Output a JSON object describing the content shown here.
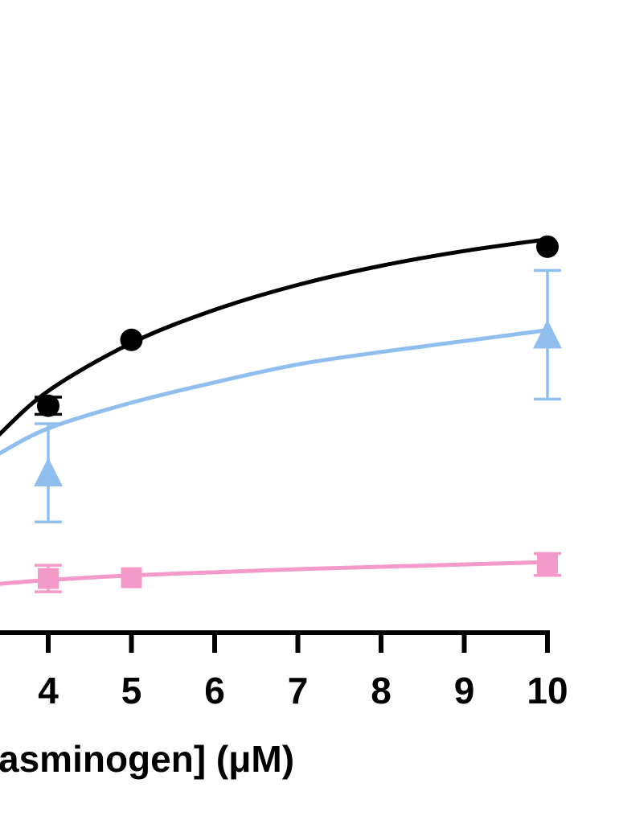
{
  "chart_data": {
    "type": "scatter",
    "xlabel": "asminogen] (μM)",
    "xlim": [
      0.5,
      10.2
    ],
    "ylim": [
      0,
      100
    ],
    "x_ticks": [
      4,
      5,
      6,
      7,
      8,
      9,
      10
    ],
    "x_tick_labels": [
      "4",
      "5",
      "6",
      "7",
      "8",
      "9",
      "10"
    ],
    "series": [
      {
        "marker": "circle",
        "color": "#000000",
        "points": [
          {
            "x": 4,
            "y": 58.2,
            "err": 2.2
          },
          {
            "x": 5,
            "y": 75.1,
            "err": 0
          },
          {
            "x": 10,
            "y": 99.0,
            "err": 0
          }
        ],
        "fit": [
          {
            "x": 3.4,
            "y": 50.6
          },
          {
            "x": 4,
            "y": 62.0
          },
          {
            "x": 5,
            "y": 74.3
          },
          {
            "x": 6,
            "y": 82.8
          },
          {
            "x": 7,
            "y": 89.2
          },
          {
            "x": 8,
            "y": 94.1
          },
          {
            "x": 9,
            "y": 97.9
          },
          {
            "x": 10,
            "y": 100.9
          }
        ]
      },
      {
        "marker": "triangle",
        "color": "#90bfef",
        "points": [
          {
            "x": 4,
            "y": 41.0,
            "err": 12.6
          },
          {
            "x": 10,
            "y": 76.4,
            "err": 16.5
          }
        ],
        "fit": [
          {
            "x": 3.4,
            "y": 45.8
          },
          {
            "x": 4,
            "y": 52.4
          },
          {
            "x": 5,
            "y": 59.0
          },
          {
            "x": 6,
            "y": 64.2
          },
          {
            "x": 7,
            "y": 68.8
          },
          {
            "x": 8,
            "y": 72.0
          },
          {
            "x": 9,
            "y": 74.8
          },
          {
            "x": 10,
            "y": 77.6
          }
        ]
      },
      {
        "marker": "square",
        "color": "#f49ac8",
        "points": [
          {
            "x": 4,
            "y": 13.9,
            "err": 3.4
          },
          {
            "x": 5,
            "y": 14.1,
            "err": 0
          },
          {
            "x": 10,
            "y": 17.5,
            "err": 2.8
          }
        ],
        "fit": [
          {
            "x": 3.4,
            "y": 12.5
          },
          {
            "x": 4,
            "y": 13.5
          },
          {
            "x": 5,
            "y": 14.7
          },
          {
            "x": 6,
            "y": 15.5
          },
          {
            "x": 7,
            "y": 16.3
          },
          {
            "x": 8,
            "y": 16.9
          },
          {
            "x": 9,
            "y": 17.5
          },
          {
            "x": 10,
            "y": 18.1
          }
        ]
      }
    ]
  }
}
